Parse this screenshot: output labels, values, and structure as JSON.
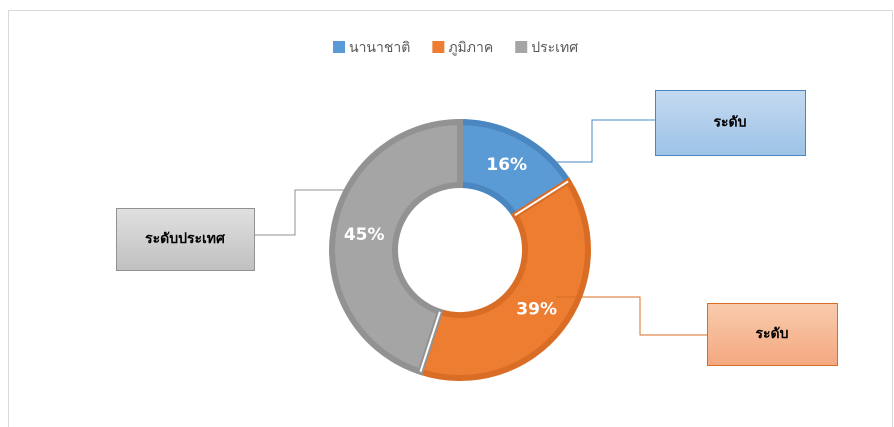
{
  "chart_data": {
    "type": "donut",
    "categories": [
      "นานาชาติ",
      "ภูมิภาค",
      "ประเทศ"
    ],
    "values": [
      16,
      39,
      45
    ],
    "value_labels": [
      "16%",
      "39%",
      "45%"
    ],
    "colors": [
      "#5b9bd5",
      "#ed7d31",
      "#a5a5a5"
    ],
    "legend": "top",
    "callouts": [
      "ระดับ",
      "ระดับ",
      "ระดับประเทศ"
    ]
  }
}
